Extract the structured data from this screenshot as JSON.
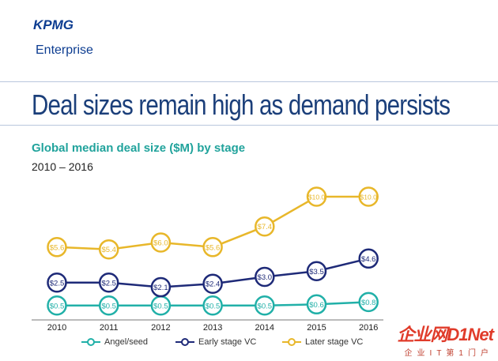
{
  "brand": {
    "name": "KPMG",
    "sub": "Enterprise"
  },
  "title": "Deal sizes remain high as demand persists",
  "subtitle": "Global median deal size ($M) by stage",
  "range": "2010 – 2016",
  "watermark": {
    "top": "企业网D1Net",
    "bottom": "企业IT第1门户"
  },
  "colors": {
    "angel": "#21b0a8",
    "early": "#1e2a78",
    "later": "#e8b72a",
    "brand": "#0d3d91"
  },
  "chart_data": {
    "type": "line",
    "categories": [
      "2010",
      "2011",
      "2012",
      "2013",
      "2014",
      "2015",
      "2016"
    ],
    "series": [
      {
        "name": "Angel/seed",
        "values": [
          0.5,
          0.5,
          0.5,
          0.5,
          0.5,
          0.6,
          0.8
        ],
        "labels": [
          "$0.5",
          "$0.5",
          "$0.5",
          "$0.5",
          "$0.5",
          "$0.6",
          "$0.8"
        ]
      },
      {
        "name": "Early stage VC",
        "values": [
          2.5,
          2.5,
          2.1,
          2.4,
          3.0,
          3.5,
          4.6
        ],
        "labels": [
          "$2.5",
          "$2.5",
          "$2.1",
          "$2.4",
          "$3.0",
          "$3.5",
          "$4.6"
        ]
      },
      {
        "name": "Later stage VC",
        "values": [
          5.6,
          5.4,
          6.0,
          5.6,
          7.4,
          10.0,
          10.0
        ],
        "labels": [
          "$5.6",
          "$5.4",
          "$6.0",
          "$5.6",
          "$7.4",
          "$10.0",
          "$10.0"
        ]
      }
    ],
    "legend": [
      "Angel/seed",
      "Early stage VC",
      "Later stage VC"
    ],
    "legend_position": "bottom",
    "grid": false
  }
}
